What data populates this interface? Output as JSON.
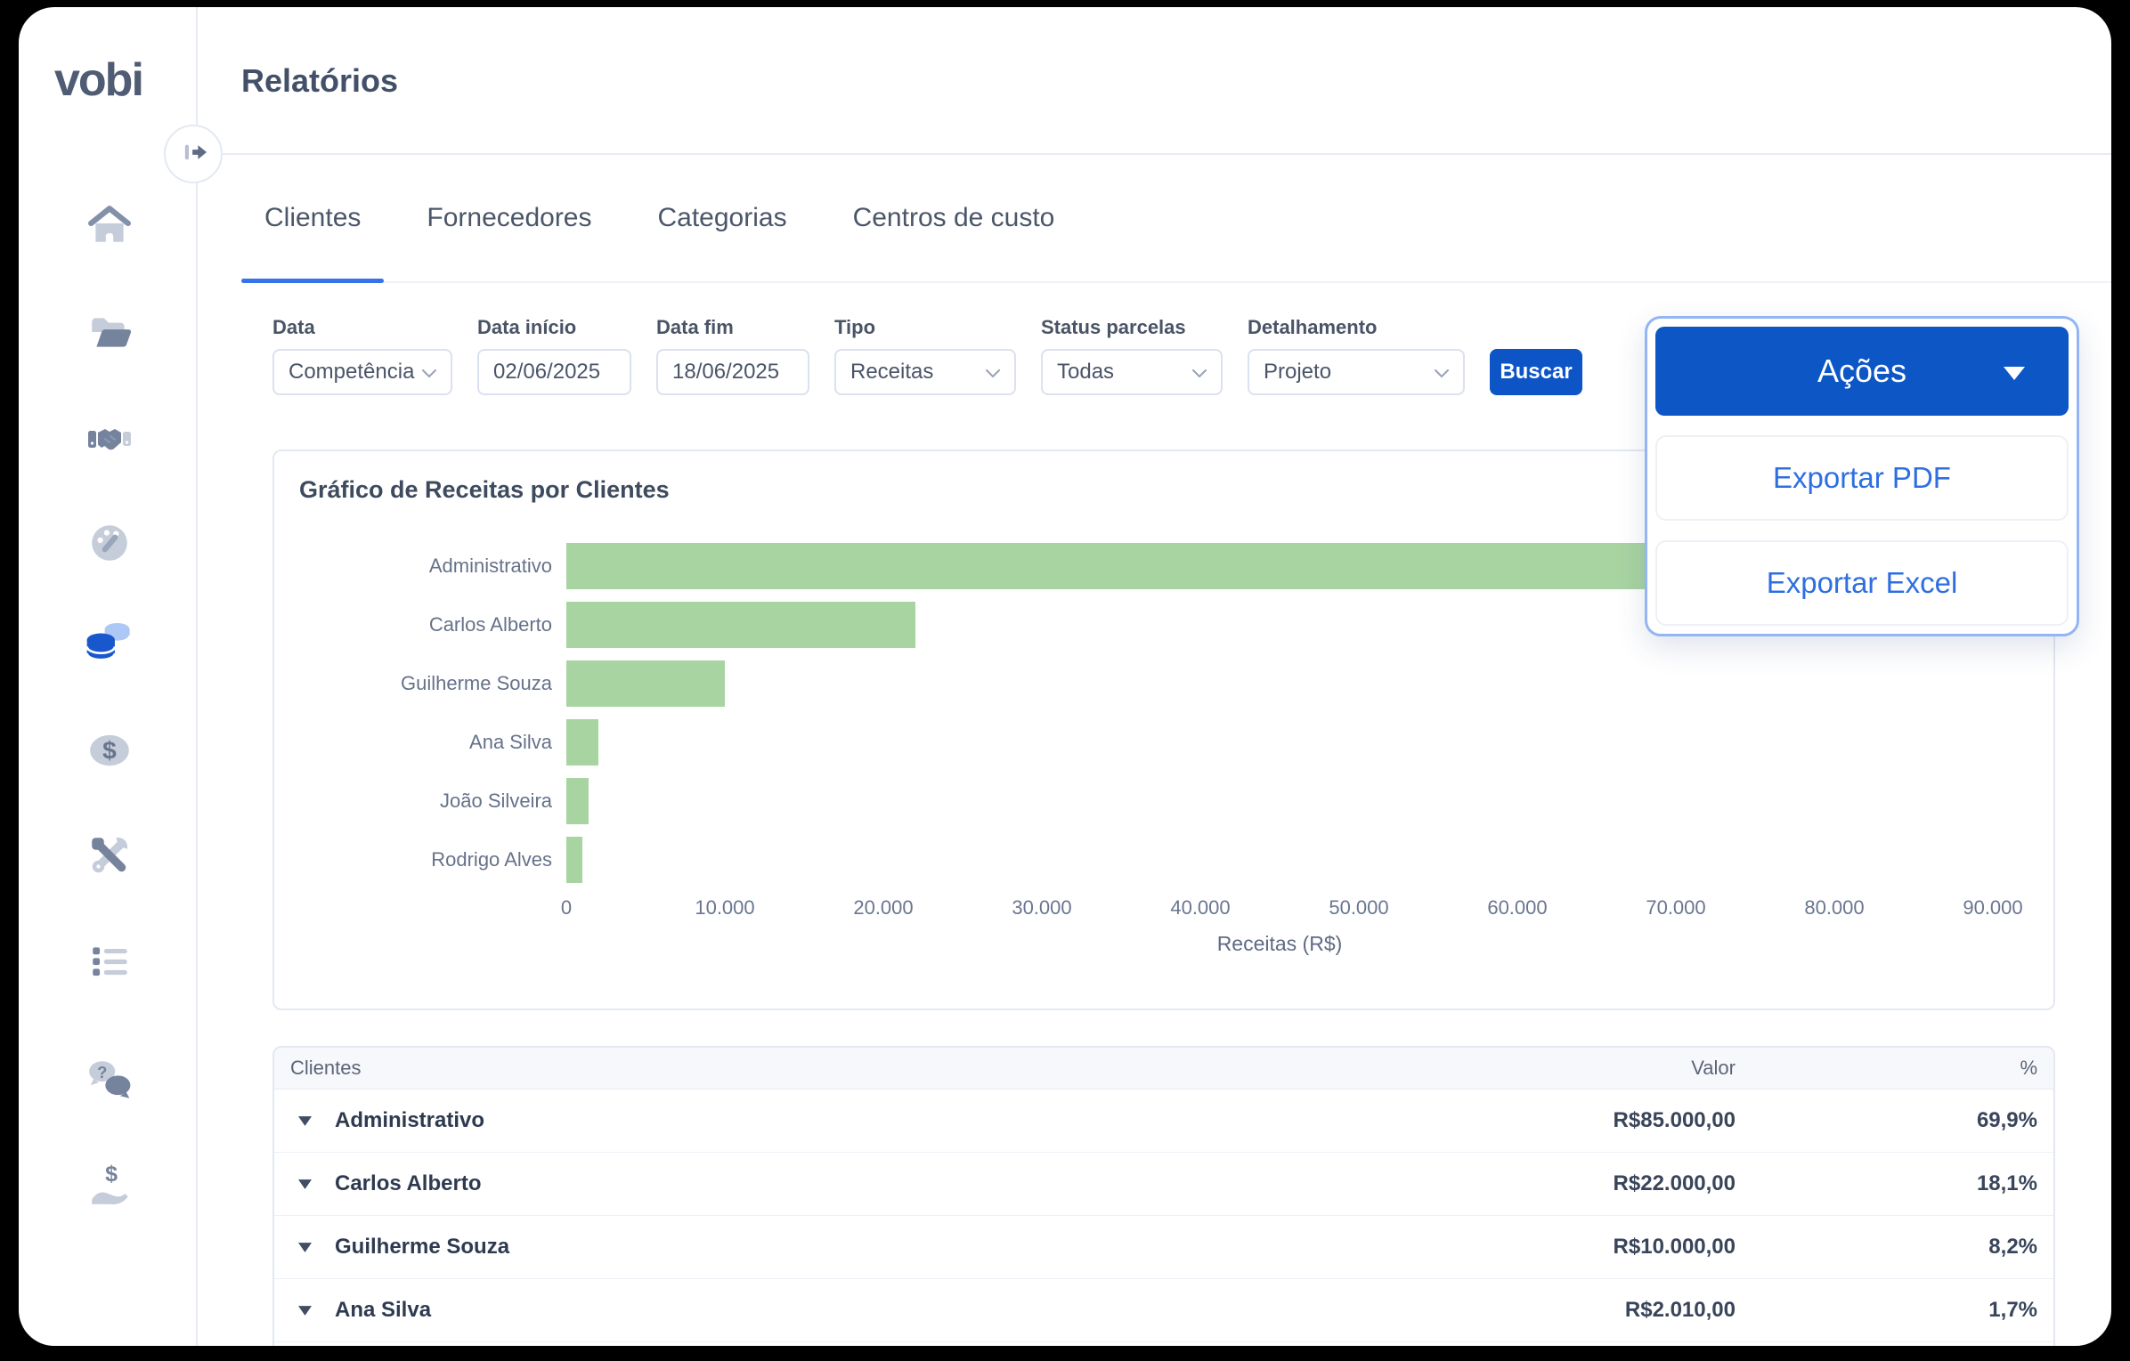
{
  "app": {
    "logo_text": "vobi",
    "page_title": "Relatórios"
  },
  "sidebar": {
    "icons": [
      "home",
      "projects-folder",
      "partners-handshake",
      "dashboard-gauge",
      "reports-database",
      "finance-dollar",
      "tools",
      "list",
      "help-chat",
      "payments-hand"
    ],
    "active_icon": "reports-database"
  },
  "tabs": {
    "items": [
      "Clientes",
      "Fornecedores",
      "Categorias",
      "Centros de custo"
    ],
    "active": "Clientes"
  },
  "filters": {
    "fields": [
      {
        "label": "Data",
        "value": "Competência",
        "type": "select"
      },
      {
        "label": "Data início",
        "value": "02/06/2025",
        "type": "input"
      },
      {
        "label": "Data fim",
        "value": "18/06/2025",
        "type": "input"
      },
      {
        "label": "Tipo",
        "value": "Receitas",
        "type": "select"
      },
      {
        "label": "Status parcelas",
        "value": "Todas",
        "type": "select"
      },
      {
        "label": "Detalhamento",
        "value": "Projeto",
        "type": "select"
      }
    ],
    "search_button": "Buscar"
  },
  "actions_menu": {
    "button_label": "Ações",
    "items": [
      "Exportar PDF",
      "Exportar Excel"
    ]
  },
  "chart_data": {
    "type": "bar",
    "orientation": "horizontal",
    "title": "Gráfico de Receitas por Clientes",
    "categories": [
      "Administrativo",
      "Carlos Alberto",
      "Guilherme Souza",
      "Ana Silva",
      "João Silveira",
      "Rodrigo Alves"
    ],
    "values": [
      85000,
      22000,
      10000,
      2010,
      1400,
      1000
    ],
    "xlabel": "Receitas (R$)",
    "xlim": [
      0,
      90000
    ],
    "xticks": [
      "0",
      "10.000",
      "20.000",
      "30.000",
      "40.000",
      "50.000",
      "60.000",
      "70.000",
      "80.000",
      "90.000"
    ],
    "bar_color": "#a8d4a1",
    "grid": false,
    "legend": null
  },
  "table": {
    "headers": {
      "client": "Clientes",
      "value": "Valor",
      "percent": "%"
    },
    "rows": [
      {
        "client": "Administrativo",
        "value": "R$85.000,00",
        "percent": "69,9%"
      },
      {
        "client": "Carlos Alberto",
        "value": "R$22.000,00",
        "percent": "18,1%"
      },
      {
        "client": "Guilherme Souza",
        "value": "R$10.000,00",
        "percent": "8,2%"
      },
      {
        "client": "Ana Silva",
        "value": "R$2.010,00",
        "percent": "1,7%"
      }
    ]
  },
  "colors": {
    "primary_button_blue": "#0d55c6",
    "link_blue": "#2e6fe0",
    "tab_underline_blue": "#3672e8",
    "bar_green": "#a8d4a1",
    "dropdown_ring_blue": "#93b5f4"
  }
}
